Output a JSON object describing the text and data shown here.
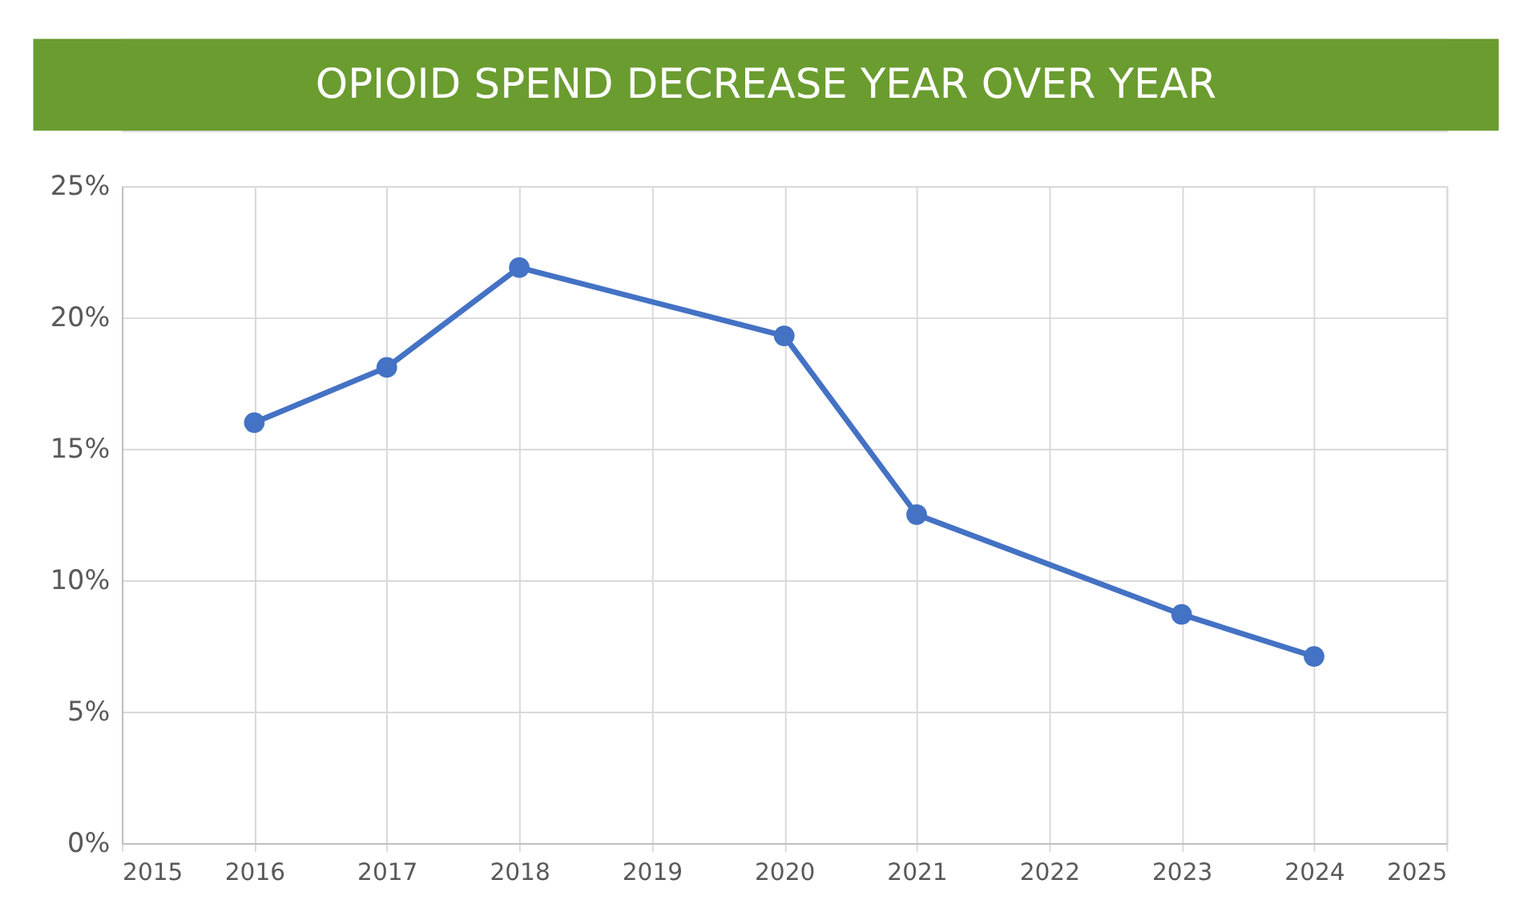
{
  "chart_data": {
    "type": "line",
    "title": "OPIOID SPEND DECREASE YEAR OVER YEAR",
    "x": [
      2016,
      2017,
      2018,
      2020,
      2021,
      2023,
      2024
    ],
    "series": [
      {
        "color": "#4472c4",
        "values": [
          16.0,
          18.1,
          21.9,
          19.3,
          12.5,
          8.7,
          7.1
        ]
      }
    ],
    "xlim": [
      2015,
      2025
    ],
    "xticks": [
      2015,
      2016,
      2017,
      2018,
      2019,
      2020,
      2021,
      2022,
      2023,
      2024,
      2025
    ],
    "ylim": [
      0,
      25
    ],
    "yticks": [
      {
        "value": 0,
        "label": "0%"
      },
      {
        "value": 5,
        "label": "5%"
      },
      {
        "value": 10,
        "label": "10%"
      },
      {
        "value": 15,
        "label": "15%"
      },
      {
        "value": 20,
        "label": "20%"
      },
      {
        "value": 25,
        "label": "25%"
      }
    ],
    "grid": true,
    "marker": "circle",
    "line_style": "solid",
    "legend": false
  }
}
